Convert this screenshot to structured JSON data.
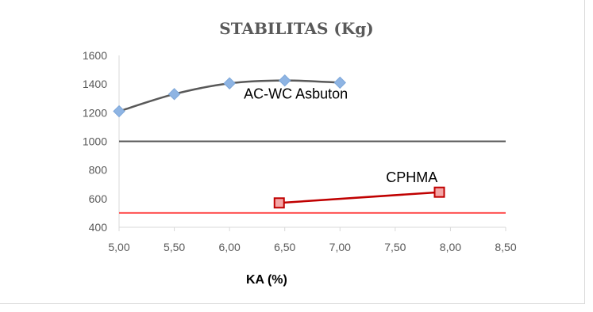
{
  "chart_data": {
    "type": "line",
    "title": "STABILITAS (Kg)",
    "xlabel": "KA (%)",
    "ylabel": "",
    "xlim": [
      5.0,
      8.5
    ],
    "ylim": [
      400,
      1600
    ],
    "x_ticks": [
      "5,00",
      "5,50",
      "6,00",
      "6,50",
      "7,00",
      "7,50",
      "8,00",
      "8,50"
    ],
    "y_ticks": [
      "400",
      "600",
      "800",
      "1000",
      "1200",
      "1400",
      "1600"
    ],
    "grid": false,
    "legend": "none",
    "series": [
      {
        "name": "AC-WC Asbuton",
        "color": "#595959",
        "marker": "diamond",
        "marker_color": "#8eb4e3",
        "points": [
          [
            5.0,
            1210
          ],
          [
            5.5,
            1330
          ],
          [
            6.0,
            1405
          ],
          [
            6.5,
            1425
          ],
          [
            7.0,
            1410
          ]
        ]
      },
      {
        "name": "CPHMA",
        "color": "#c00000",
        "marker": "square",
        "marker_color": "#f4a6a6",
        "points": [
          [
            6.45,
            570
          ],
          [
            7.9,
            645
          ]
        ]
      }
    ],
    "reference_lines": [
      {
        "y": 1000,
        "color": "#595959"
      },
      {
        "y": 500,
        "color": "#ff5050"
      }
    ],
    "annotations": [
      {
        "text": "AC-WC Asbuton",
        "x": 6.6,
        "y": 1300
      },
      {
        "text": "CPHMA",
        "x": 7.65,
        "y": 715
      }
    ]
  }
}
